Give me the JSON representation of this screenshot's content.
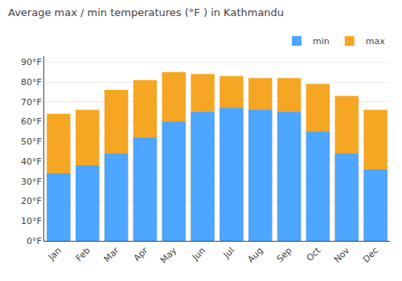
{
  "chart_data": {
    "type": "bar",
    "title": "Average max / min temperatures (°F ) in Kathmandu",
    "categories": [
      "Jan",
      "Feb",
      "Mar",
      "Apr",
      "May",
      "Jun",
      "Jul",
      "Aug",
      "Sep",
      "Oct",
      "Nov",
      "Dec"
    ],
    "series": [
      {
        "name": "min",
        "color": "#4da6ff",
        "values": [
          34,
          38,
          44,
          52,
          60,
          65,
          67,
          66,
          65,
          55,
          44,
          36
        ]
      },
      {
        "name": "max",
        "color": "#f5a623",
        "values": [
          64,
          66,
          76,
          81,
          85,
          84,
          83,
          82,
          82,
          79,
          73,
          66
        ]
      }
    ],
    "stacked": false,
    "ylim": [
      0,
      93
    ],
    "yticks": [
      {
        "value": 0,
        "label": "0°F"
      },
      {
        "value": 10,
        "label": "10°F"
      },
      {
        "value": 20,
        "label": "20°F"
      },
      {
        "value": 30,
        "label": "30°F"
      },
      {
        "value": 40,
        "label": "40°F"
      },
      {
        "value": 50,
        "label": "50°F"
      },
      {
        "value": 60,
        "label": "60°F"
      },
      {
        "value": 70,
        "label": "70°F"
      },
      {
        "value": 80,
        "label": "80°F"
      },
      {
        "value": 90,
        "label": "90°F"
      }
    ],
    "grid": true,
    "legend": "upper right"
  }
}
